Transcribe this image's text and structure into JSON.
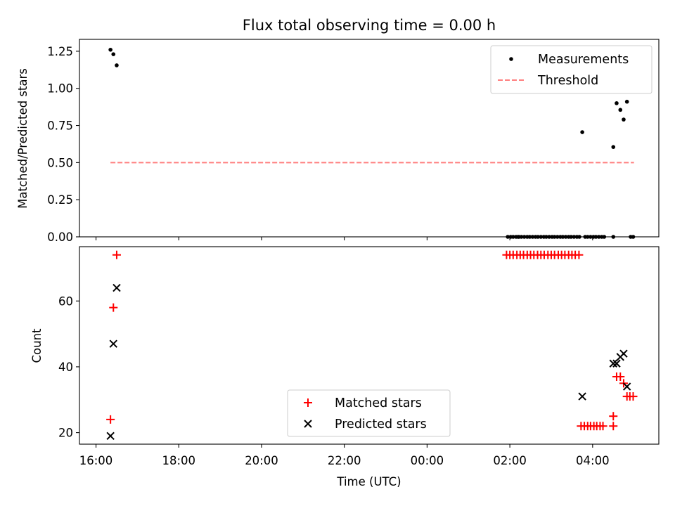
{
  "chart_data": [
    {
      "type": "scatter",
      "title": "Flux total observing time = 0.00 h",
      "xlabel": "",
      "ylabel": "Matched/Predicted stars",
      "xlim": [
        15.6,
        29.6
      ],
      "ylim": [
        0,
        1.33
      ],
      "yticks": [
        0,
        0.25,
        0.5,
        0.75,
        1.0,
        1.25
      ],
      "ytick_labels": [
        "0.00",
        "0.25",
        "0.50",
        "0.75",
        "1.00",
        "1.25"
      ],
      "legend": {
        "position": "top-right",
        "entries": [
          "Measurements",
          "Threshold"
        ]
      },
      "series": [
        {
          "name": "Measurements",
          "kind": "points",
          "color": "#000000",
          "x": [
            16.35,
            16.42,
            16.5,
            26.2,
            27.75,
            28.5,
            28.58,
            28.67,
            28.75,
            28.83
          ],
          "y": [
            1.26,
            1.23,
            1.155,
            0.0,
            0.705,
            0.605,
            0.9,
            0.855,
            0.79,
            0.91
          ]
        },
        {
          "name": "Measurements-zero-run",
          "kind": "points",
          "color": "#000000",
          "x": [
            25.95,
            26.02,
            26.08,
            26.15,
            26.22,
            26.28,
            26.35,
            26.42,
            26.48,
            26.55,
            26.62,
            26.68,
            26.75,
            26.82,
            26.88,
            26.95,
            27.02,
            27.08,
            27.15,
            27.22,
            27.28,
            27.35,
            27.42,
            27.48,
            27.55,
            27.62,
            27.68,
            27.82,
            27.88,
            27.95,
            28.02,
            28.08,
            28.15,
            28.22,
            28.28,
            28.5,
            28.92,
            28.98
          ],
          "y": 0
        },
        {
          "name": "Threshold",
          "kind": "dashed-line",
          "color": "#ff7f7f",
          "x": [
            16.35,
            29.0
          ],
          "y": [
            0.5,
            0.5
          ]
        }
      ]
    },
    {
      "type": "scatter",
      "title": "",
      "xlabel": "Time (UTC)",
      "ylabel": "Count",
      "xlim": [
        15.6,
        29.6
      ],
      "ylim": [
        16.5,
        76.5
      ],
      "yticks": [
        20,
        40,
        60
      ],
      "ytick_labels": [
        "20",
        "40",
        "60"
      ],
      "xticks": [
        16,
        18,
        20,
        22,
        24,
        26,
        28
      ],
      "xtick_labels": [
        "16:00",
        "18:00",
        "20:00",
        "22:00",
        "00:00",
        "02:00",
        "04:00"
      ],
      "legend": {
        "position": "lower-center",
        "entries": [
          "Matched stars",
          "Predicted stars"
        ]
      },
      "series": [
        {
          "name": "Matched stars",
          "marker": "plus",
          "color": "#ff0000",
          "x": [
            16.35,
            16.42,
            16.5,
            25.92,
            26.0,
            26.08,
            26.17,
            26.25,
            26.33,
            26.42,
            26.5,
            26.58,
            26.67,
            26.75,
            26.83,
            26.92,
            27.0,
            27.08,
            27.17,
            27.25,
            27.33,
            27.42,
            27.5,
            27.58,
            27.67,
            27.72,
            27.8,
            27.88,
            27.95,
            28.03,
            28.1,
            28.18,
            28.25,
            28.5,
            28.5,
            28.58,
            28.67,
            28.75,
            28.83,
            28.9,
            28.98
          ],
          "y": [
            24,
            58,
            74,
            74,
            74,
            74,
            74,
            74,
            74,
            74,
            74,
            74,
            74,
            74,
            74,
            74,
            74,
            74,
            74,
            74,
            74,
            74,
            74,
            74,
            74,
            22,
            22,
            22,
            22,
            22,
            22,
            22,
            22,
            22,
            25,
            37,
            37,
            35,
            31,
            31,
            31
          ]
        },
        {
          "name": "Predicted stars",
          "marker": "x",
          "color": "#000000",
          "x": [
            16.35,
            16.42,
            16.5,
            27.75,
            28.5,
            28.58,
            28.67,
            28.75,
            28.83
          ],
          "y": [
            19,
            47,
            64,
            31,
            41,
            41,
            43,
            44,
            34
          ]
        }
      ]
    }
  ]
}
